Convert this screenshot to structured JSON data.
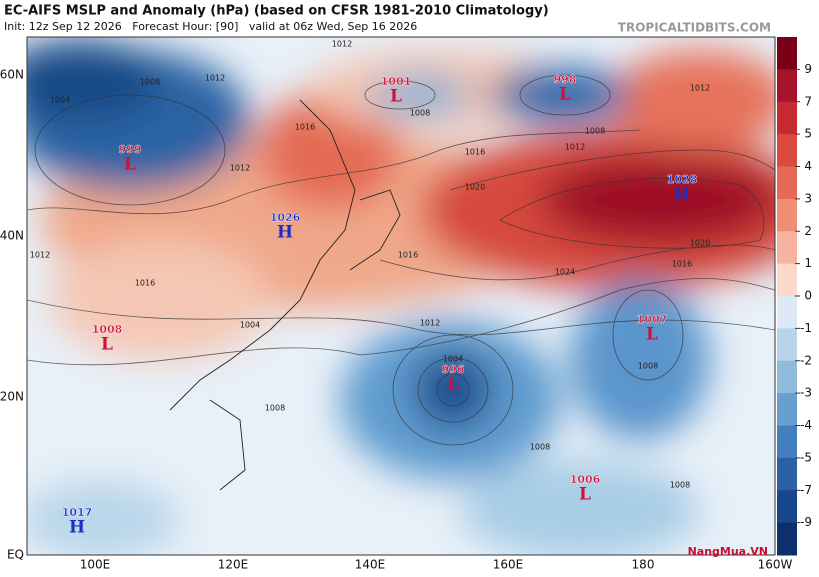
{
  "header": {
    "title": "EC-AIFS MSLP and Anomaly (hPa) (based on CFSR 1981-2010 Climatology)",
    "subtitle": "Init: 12z Sep 12 2026   Forecast Hour: [90]   valid at 06z Wed, Sep 16 2026",
    "site": "TROPICALTIDBITS.COM"
  },
  "map": {
    "lon_labels": [
      "100E",
      "120E",
      "140E",
      "160E",
      "180",
      "160W"
    ],
    "lat_labels": [
      "60N",
      "40N",
      "20N",
      "EQ"
    ],
    "centers": [
      {
        "type": "L",
        "value": 1001
      },
      {
        "type": "L",
        "value": 998
      },
      {
        "type": "L",
        "value": 999
      },
      {
        "type": "H",
        "value": 1028
      },
      {
        "type": "H",
        "value": 1026
      },
      {
        "type": "L",
        "value": 1008
      },
      {
        "type": "L",
        "value": 996
      },
      {
        "type": "L",
        "value": 1007
      },
      {
        "type": "L",
        "value": 1006
      },
      {
        "type": "H",
        "value": 1017
      }
    ],
    "contour_labels": [
      1012,
      1008,
      1012,
      1008,
      1004,
      1016,
      1012,
      1016,
      1012,
      1020,
      1024,
      1016,
      1020,
      1016,
      1016,
      1012,
      1008,
      1004,
      1008,
      1008,
      1008,
      1012,
      1008,
      1004,
      1012
    ]
  },
  "colorbar": {
    "ticks": [
      9,
      7,
      5,
      4,
      3,
      2,
      1,
      0,
      -1,
      -2,
      -3,
      -4,
      -5,
      -7,
      -9
    ]
  },
  "logo": "NangMua.VN"
}
